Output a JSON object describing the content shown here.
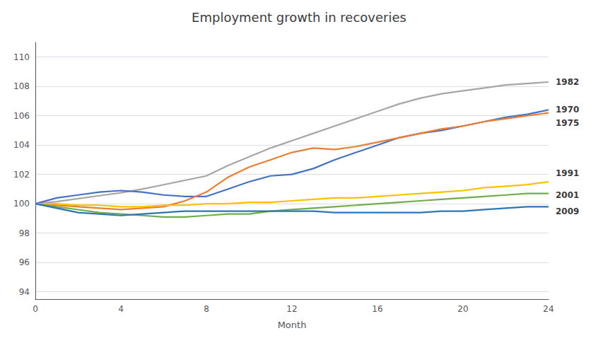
{
  "chart_data": {
    "type": "line",
    "title": "Employment growth in recoveries",
    "xlabel": "Month",
    "x": [
      0,
      1,
      2,
      3,
      4,
      5,
      6,
      7,
      8,
      9,
      10,
      11,
      12,
      13,
      14,
      15,
      16,
      17,
      18,
      19,
      20,
      21,
      22,
      23,
      24
    ],
    "series": [
      {
        "name": "1982",
        "color": "#a6a6a6",
        "values": [
          100.0,
          100.15,
          100.35,
          100.55,
          100.75,
          101.0,
          101.3,
          101.6,
          101.9,
          102.6,
          103.2,
          103.8,
          104.3,
          104.8,
          105.3,
          105.8,
          106.3,
          106.8,
          107.2,
          107.5,
          107.7,
          107.9,
          108.1,
          108.2,
          108.3
        ]
      },
      {
        "name": "1970",
        "color": "#4472c4",
        "values": [
          100.0,
          100.4,
          100.6,
          100.8,
          100.9,
          100.8,
          100.6,
          100.5,
          100.5,
          101.0,
          101.5,
          101.9,
          102.0,
          102.4,
          103.0,
          103.5,
          104.0,
          104.5,
          104.8,
          105.0,
          105.3,
          105.6,
          105.9,
          106.1,
          106.4
        ]
      },
      {
        "name": "1975",
        "color": "#ed7d31",
        "values": [
          100.0,
          99.9,
          99.8,
          99.7,
          99.6,
          99.7,
          99.8,
          100.2,
          100.8,
          101.8,
          102.5,
          103.0,
          103.5,
          103.8,
          103.7,
          103.9,
          104.2,
          104.5,
          104.8,
          105.1,
          105.3,
          105.6,
          105.8,
          106.0,
          106.2
        ]
      },
      {
        "name": "1991",
        "color": "#ffc000",
        "values": [
          100.0,
          100.0,
          99.9,
          99.9,
          99.8,
          99.8,
          99.9,
          99.9,
          100.0,
          100.0,
          100.1,
          100.1,
          100.2,
          100.3,
          100.4,
          100.4,
          100.5,
          100.6,
          100.7,
          100.8,
          100.9,
          101.1,
          101.2,
          101.3,
          101.5
        ]
      },
      {
        "name": "2001",
        "color": "#70ad47",
        "values": [
          100.0,
          99.8,
          99.6,
          99.4,
          99.3,
          99.2,
          99.1,
          99.1,
          99.2,
          99.3,
          99.3,
          99.5,
          99.6,
          99.7,
          99.8,
          99.9,
          100.0,
          100.1,
          100.2,
          100.3,
          100.4,
          100.5,
          100.6,
          100.7,
          100.7
        ]
      },
      {
        "name": "2009",
        "color": "#2e75b6",
        "values": [
          100.0,
          99.7,
          99.4,
          99.3,
          99.2,
          99.3,
          99.4,
          99.5,
          99.5,
          99.5,
          99.5,
          99.5,
          99.5,
          99.5,
          99.4,
          99.4,
          99.4,
          99.4,
          99.4,
          99.5,
          99.5,
          99.6,
          99.7,
          99.8,
          99.8
        ]
      }
    ],
    "annotations": [
      {
        "text": "1982",
        "y": 108.3
      },
      {
        "text": "1970",
        "y": 106.4
      },
      {
        "text": "1975",
        "y": 105.5
      },
      {
        "text": "1991",
        "y": 102.1
      },
      {
        "text": "2001",
        "y": 100.6
      },
      {
        "text": "2009",
        "y": 99.5
      }
    ],
    "xlim": [
      0,
      24
    ],
    "ylim": [
      93.5,
      111
    ],
    "xticks": [
      0,
      4,
      8,
      12,
      16,
      20,
      24
    ],
    "yticks": [
      94,
      96,
      98,
      100,
      102,
      104,
      106,
      108,
      110
    ],
    "grid": true
  }
}
